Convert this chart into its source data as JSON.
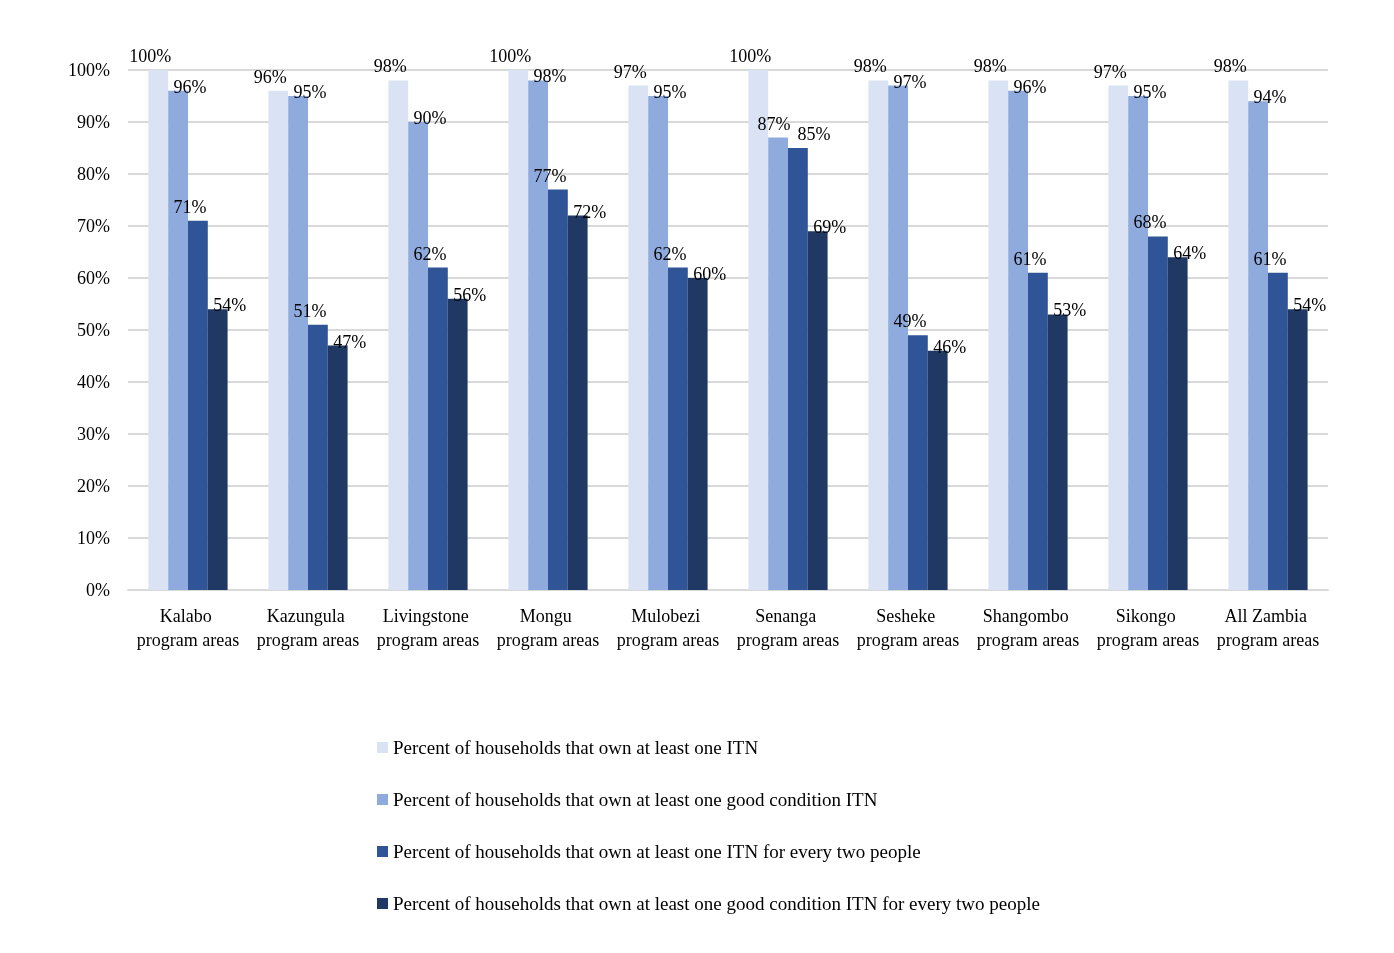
{
  "chart_data": {
    "type": "bar",
    "categories": [
      "Kalabo program areas",
      "Kazungula program areas",
      "Livingstone program areas",
      "Mongu program areas",
      "Mulobezi program areas",
      "Senanga program areas",
      "Sesheke program areas",
      "Shangombo program areas",
      "Sikongo program areas",
      "All Zambia program areas"
    ],
    "series": [
      {
        "name": "Percent of households that own at least one ITN",
        "color": "#dae3f3",
        "values": [
          100,
          96,
          98,
          100,
          97,
          100,
          98,
          98,
          97,
          98
        ],
        "value_labels": [
          "100%",
          "96%",
          "98%",
          "100%",
          "97%",
          "100%",
          "98%",
          "98%",
          "97%",
          "98%"
        ]
      },
      {
        "name": "Percent of households that own at least one good condition ITN",
        "color": "#8faadc",
        "values": [
          96,
          95,
          90,
          98,
          95,
          87,
          97,
          96,
          95,
          94
        ],
        "value_labels": [
          "96%",
          "95%",
          "90%",
          "98%",
          "95%",
          "87%",
          "97%",
          "96%",
          "95%",
          "94%"
        ]
      },
      {
        "name": "Percent of households that own at least one ITN for every two people",
        "color": "#2f5597",
        "values": [
          71,
          51,
          62,
          77,
          62,
          85,
          49,
          61,
          68,
          61
        ],
        "value_labels": [
          "71%",
          "51%",
          "62%",
          "77%",
          "62%",
          "85%",
          "49%",
          "61%",
          "68%",
          "61%"
        ]
      },
      {
        "name": "Percent of households that own at least one good condition ITN for every two people",
        "color": "#203864",
        "values": [
          54,
          47,
          56,
          72,
          60,
          69,
          46,
          53,
          64,
          54
        ],
        "value_labels": [
          "54%",
          "47%",
          "56%",
          "72%",
          "60%",
          "69%",
          "46%",
          "53%",
          "64%",
          "54%"
        ]
      }
    ],
    "ylim": [
      0,
      100
    ],
    "yticks": [
      {
        "value": 0,
        "label": "0%"
      },
      {
        "value": 10,
        "label": "10%"
      },
      {
        "value": 20,
        "label": "20%"
      },
      {
        "value": 30,
        "label": "30%"
      },
      {
        "value": 40,
        "label": "40%"
      },
      {
        "value": 50,
        "label": "50%"
      },
      {
        "value": 60,
        "label": "60%"
      },
      {
        "value": 70,
        "label": "70%"
      },
      {
        "value": 80,
        "label": "80%"
      },
      {
        "value": 90,
        "label": "90%"
      },
      {
        "value": 100,
        "label": "100%"
      }
    ],
    "grid": "y",
    "legend": "bottom"
  }
}
